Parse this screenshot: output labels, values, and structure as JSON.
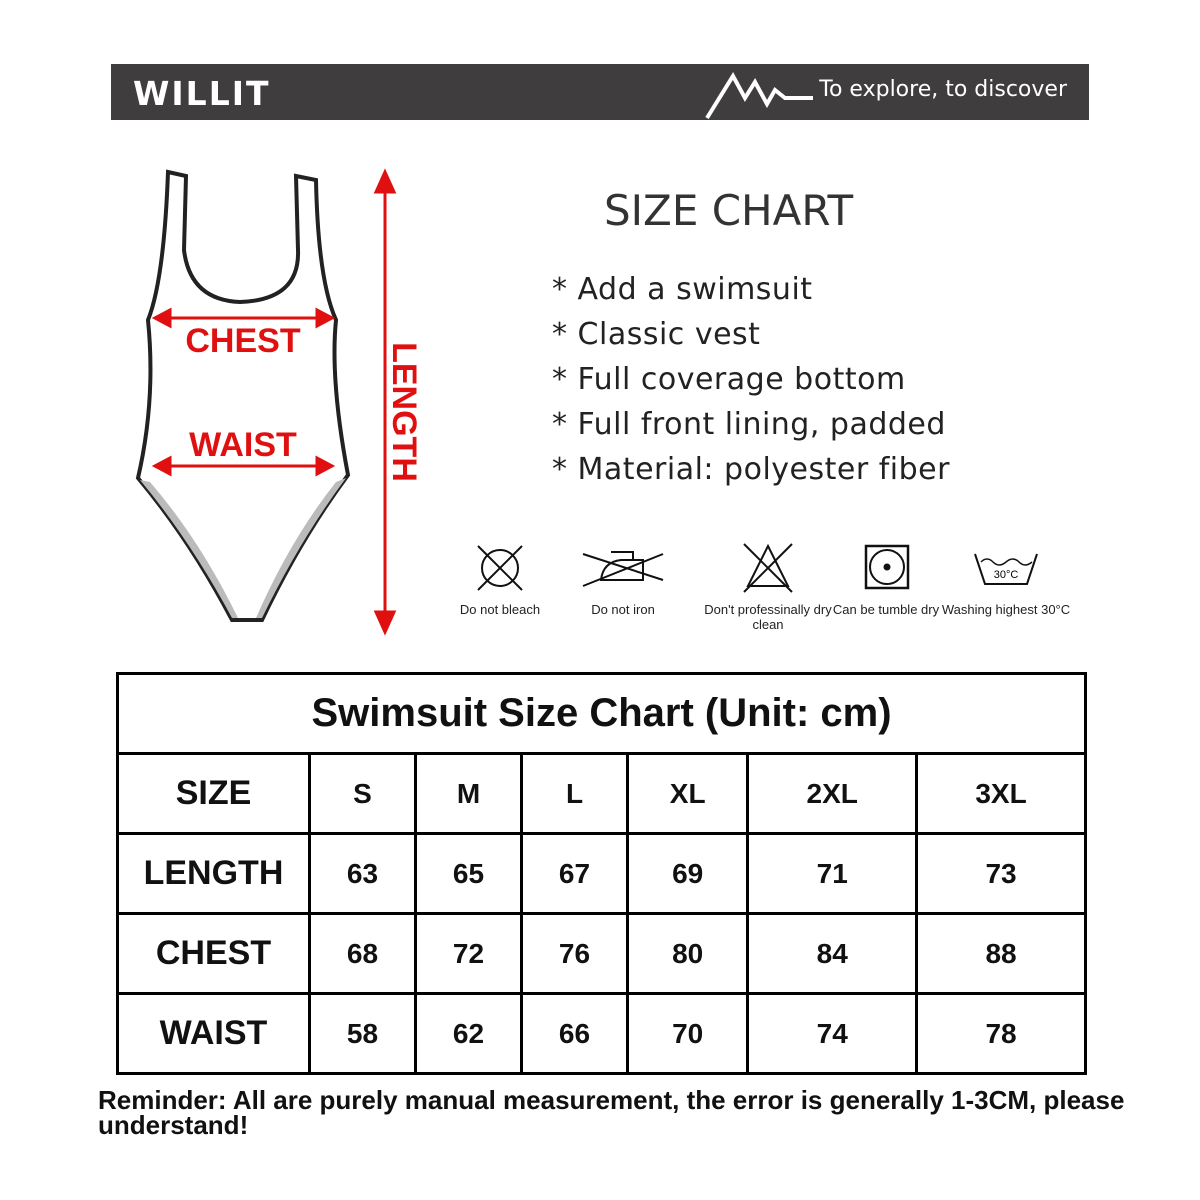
{
  "header": {
    "brand": "WILLIT",
    "slogan": "To explore, to discover"
  },
  "title": "SIZE CHART",
  "features": [
    "* Add a swimsuit",
    "* Classic vest",
    "* Full coverage bottom",
    "* Full front lining, padded",
    "* Material: polyester fiber"
  ],
  "diagram": {
    "chest": "CHEST",
    "waist": "WAIST",
    "length": "LENGTH",
    "accent": "#e01010"
  },
  "care": [
    {
      "icon": "no-bleach-icon",
      "label": "Do not bleach"
    },
    {
      "icon": "no-iron-icon",
      "label": "Do not iron"
    },
    {
      "icon": "no-dry-clean-icon",
      "label": "Don't professinally dry clean"
    },
    {
      "icon": "tumble-dry-icon",
      "label": "Can be tumble dry"
    },
    {
      "icon": "wash-30-icon",
      "label": "Washing highest 30°C",
      "temp": "30°C"
    }
  ],
  "table": {
    "caption": "Swimsuit Size Chart (Unit: cm)",
    "header": [
      "SIZE",
      "S",
      "M",
      "L",
      "XL",
      "2XL",
      "3XL"
    ],
    "rows": [
      [
        "LENGTH",
        "63",
        "65",
        "67",
        "69",
        "71",
        "73"
      ],
      [
        "CHEST",
        "68",
        "72",
        "76",
        "80",
        "84",
        "88"
      ],
      [
        "WAIST",
        "58",
        "62",
        "66",
        "70",
        "74",
        "78"
      ]
    ]
  },
  "note": "Reminder: All are purely manual measurement, the error is generally 1-3CM, please understand!"
}
